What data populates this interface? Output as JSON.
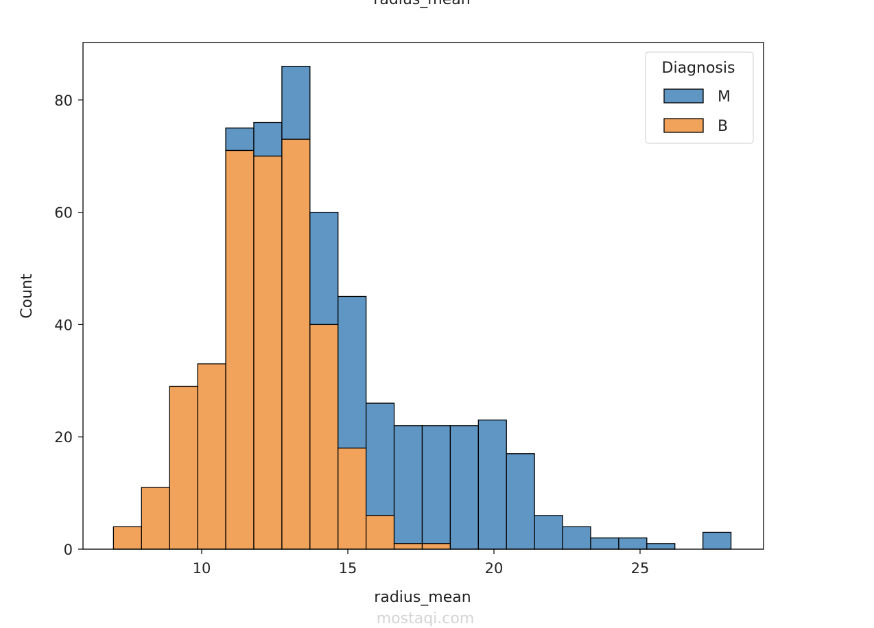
{
  "chart_data": {
    "type": "bar",
    "subtype": "stacked-histogram",
    "title": "radius_mean",
    "xlabel": "radius_mean",
    "ylabel": "Count",
    "xlim": [
      6.0,
      29.0
    ],
    "ylim": [
      0,
      90
    ],
    "xticks": [
      10,
      15,
      20,
      25
    ],
    "yticks": [
      0,
      20,
      40,
      60,
      80
    ],
    "bin_start": 6.981,
    "bin_width": 0.9605,
    "grid": false,
    "legend": {
      "title": "Diagnosis",
      "placement": "top-right"
    },
    "series": [
      {
        "name": "M",
        "color": "#6096c4",
        "values": [
          0,
          0,
          0,
          0,
          4,
          6,
          13,
          20,
          27,
          20,
          21,
          21,
          22,
          23,
          17,
          6,
          4,
          2,
          2,
          1,
          0,
          3
        ]
      },
      {
        "name": "B",
        "color": "#f1a35c",
        "values": [
          4,
          11,
          29,
          33,
          71,
          70,
          73,
          40,
          18,
          6,
          1,
          1,
          0,
          0,
          0,
          0,
          0,
          0,
          0,
          0,
          0,
          0
        ]
      }
    ]
  },
  "watermark": "mostaqi.com"
}
